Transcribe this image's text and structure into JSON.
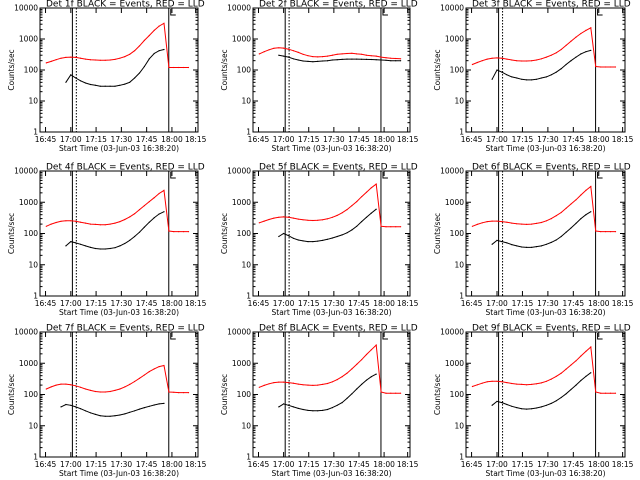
{
  "figure": {
    "colors": {
      "events": "#000000",
      "lld": "#ff0000",
      "axes": "#000000",
      "background": "#ffffff"
    }
  },
  "chart_data": [
    {
      "type": "line",
      "detector": "1f",
      "title": "Det 1f BLACK = Events, RED = LLD",
      "xlabel": "Start Time (03-Jun-03 16:38:20)",
      "ylabel": "Counts/sec",
      "x_tick_labels": [
        "16:45",
        "17:00",
        "17:15",
        "17:30",
        "17:45",
        "18:00",
        "18:15"
      ],
      "y_tick_labels": [
        "1",
        "10",
        "100",
        "1000",
        "10000"
      ],
      "ylim": [
        1,
        10000
      ],
      "y_scale": "log",
      "series": [
        {
          "name": "Events",
          "color": "#000000",
          "values": [
            null,
            null,
            null,
            null,
            40,
            70,
            55,
            45,
            38,
            34,
            32,
            30,
            30,
            30,
            30,
            32,
            35,
            40,
            55,
            80,
            130,
            230,
            340,
            420,
            460,
            null,
            null,
            null,
            null,
            null
          ]
        },
        {
          "name": "LLD",
          "color": "#ff0000",
          "values": [
            170,
            190,
            215,
            240,
            255,
            260,
            255,
            240,
            225,
            215,
            210,
            205,
            205,
            210,
            220,
            240,
            270,
            320,
            420,
            600,
            900,
            1300,
            1900,
            2600,
            3200,
            120,
            120,
            120,
            120,
            120
          ]
        }
      ]
    },
    {
      "type": "line",
      "detector": "2f",
      "title": "Det 2f BLACK = Events, RED = LLD",
      "xlabel": "Start Time (03-Jun-03 16:38:20)",
      "ylabel": "Counts/sec",
      "x_tick_labels": [
        "16:45",
        "17:00",
        "17:15",
        "17:30",
        "17:45",
        "18:00",
        "18:15"
      ],
      "y_tick_labels": [
        "1",
        "10",
        "100",
        "1000",
        "10000"
      ],
      "ylim": [
        1,
        10000
      ],
      "y_scale": "log",
      "series": [
        {
          "name": "Events",
          "color": "#000000",
          "values": [
            null,
            null,
            null,
            null,
            300,
            280,
            260,
            230,
            210,
            195,
            190,
            185,
            190,
            195,
            200,
            210,
            215,
            220,
            225,
            225,
            225,
            222,
            220,
            218,
            215,
            210,
            205,
            200,
            200,
            200
          ]
        },
        {
          "name": "LLD",
          "color": "#ff0000",
          "values": [
            330,
            390,
            450,
            500,
            520,
            510,
            470,
            420,
            370,
            320,
            290,
            270,
            265,
            270,
            280,
            300,
            320,
            330,
            340,
            345,
            330,
            320,
            300,
            290,
            280,
            260,
            250,
            240,
            235,
            230
          ]
        }
      ]
    },
    {
      "type": "line",
      "detector": "3f",
      "title": "Det 3f BLACK = Events, RED = LLD",
      "xlabel": "Start Time (03-Jun-03 16:38:20)",
      "ylabel": "Counts/sec",
      "x_tick_labels": [
        "16:45",
        "17:00",
        "17:15",
        "17:30",
        "17:45",
        "18:00",
        "18:15"
      ],
      "y_tick_labels": [
        "1",
        "10",
        "100",
        "1000",
        "10000"
      ],
      "ylim": [
        1,
        10000
      ],
      "y_scale": "log",
      "series": [
        {
          "name": "Events",
          "color": "#000000",
          "values": [
            null,
            null,
            null,
            null,
            50,
            100,
            85,
            70,
            60,
            55,
            50,
            48,
            48,
            50,
            55,
            60,
            70,
            85,
            110,
            150,
            200,
            260,
            330,
            390,
            430,
            null,
            null,
            null,
            null,
            null
          ]
        },
        {
          "name": "LLD",
          "color": "#ff0000",
          "values": [
            150,
            175,
            200,
            225,
            240,
            245,
            240,
            225,
            210,
            200,
            195,
            195,
            200,
            210,
            230,
            260,
            300,
            360,
            460,
            620,
            850,
            1150,
            1500,
            1900,
            2300,
            130,
            125,
            125,
            125,
            125
          ]
        }
      ]
    },
    {
      "type": "line",
      "detector": "4f",
      "title": "Det 4f BLACK = Events, RED = LLD",
      "xlabel": "Start Time (03-Jun-03 16:38:20)",
      "ylabel": "Counts/sec",
      "x_tick_labels": [
        "16:45",
        "17:00",
        "17:15",
        "17:30",
        "17:45",
        "18:00",
        "18:15"
      ],
      "y_tick_labels": [
        "1",
        "10",
        "100",
        "1000",
        "10000"
      ],
      "ylim": [
        1,
        10000
      ],
      "y_scale": "log",
      "series": [
        {
          "name": "Events",
          "color": "#000000",
          "values": [
            null,
            null,
            null,
            null,
            40,
            55,
            50,
            45,
            40,
            36,
            33,
            32,
            32,
            33,
            35,
            40,
            48,
            60,
            80,
            110,
            160,
            230,
            320,
            420,
            500,
            null,
            null,
            null,
            null,
            null
          ]
        },
        {
          "name": "LLD",
          "color": "#ff0000",
          "values": [
            170,
            200,
            225,
            245,
            255,
            255,
            245,
            230,
            215,
            200,
            195,
            190,
            190,
            200,
            215,
            240,
            280,
            340,
            430,
            580,
            780,
            1050,
            1400,
            1900,
            2400,
            120,
            115,
            115,
            115,
            115
          ]
        }
      ]
    },
    {
      "type": "line",
      "detector": "5f",
      "title": "Det 5f BLACK = Events, RED = LLD",
      "xlabel": "Start Time (03-Jun-03 16:38:20)",
      "ylabel": "Counts/sec",
      "x_tick_labels": [
        "16:45",
        "17:00",
        "17:15",
        "17:30",
        "17:45",
        "18:00",
        "18:15"
      ],
      "y_tick_labels": [
        "1",
        "10",
        "100",
        "1000",
        "10000"
      ],
      "ylim": [
        1,
        10000
      ],
      "y_scale": "log",
      "series": [
        {
          "name": "Events",
          "color": "#000000",
          "values": [
            null,
            null,
            null,
            null,
            80,
            100,
            85,
            70,
            62,
            58,
            55,
            55,
            57,
            60,
            65,
            72,
            80,
            90,
            105,
            130,
            170,
            240,
            330,
            450,
            600,
            null,
            null,
            null,
            null,
            null
          ]
        },
        {
          "name": "LLD",
          "color": "#ff0000",
          "values": [
            220,
            250,
            280,
            310,
            330,
            340,
            330,
            310,
            290,
            275,
            265,
            260,
            265,
            275,
            295,
            330,
            380,
            460,
            580,
            780,
            1050,
            1500,
            2100,
            2900,
            3800,
            170,
            165,
            165,
            165,
            165
          ]
        }
      ]
    },
    {
      "type": "line",
      "detector": "6f",
      "title": "Det 6f BLACK = Events, RED = LLD",
      "xlabel": "Start Time (03-Jun-03 16:38:20)",
      "ylabel": "Counts/sec",
      "x_tick_labels": [
        "16:45",
        "17:00",
        "17:15",
        "17:30",
        "17:45",
        "18:00",
        "18:15"
      ],
      "y_tick_labels": [
        "1",
        "10",
        "100",
        "1000",
        "10000"
      ],
      "ylim": [
        1,
        10000
      ],
      "y_scale": "log",
      "series": [
        {
          "name": "Events",
          "color": "#000000",
          "values": [
            null,
            null,
            null,
            null,
            45,
            60,
            55,
            50,
            44,
            40,
            37,
            36,
            36,
            38,
            40,
            45,
            52,
            62,
            80,
            110,
            150,
            210,
            300,
            400,
            500,
            null,
            null,
            null,
            null,
            null
          ]
        },
        {
          "name": "LLD",
          "color": "#ff0000",
          "values": [
            170,
            195,
            220,
            240,
            250,
            250,
            240,
            230,
            215,
            205,
            200,
            195,
            200,
            210,
            225,
            255,
            300,
            370,
            470,
            640,
            880,
            1200,
            1700,
            2400,
            3200,
            120,
            115,
            115,
            115,
            115
          ]
        }
      ]
    },
    {
      "type": "line",
      "detector": "7f",
      "title": "Det 7f BLACK = Events, RED = LLD",
      "xlabel": "Start Time (03-Jun-03 16:38:20)",
      "ylabel": "Counts/sec",
      "x_tick_labels": [
        "16:45",
        "17:00",
        "17:15",
        "17:30",
        "17:45",
        "18:00",
        "18:15"
      ],
      "y_tick_labels": [
        "1",
        "10",
        "100",
        "1000",
        "10000"
      ],
      "ylim": [
        1,
        10000
      ],
      "y_scale": "log",
      "series": [
        {
          "name": "Events",
          "color": "#000000",
          "values": [
            null,
            null,
            null,
            40,
            48,
            45,
            40,
            35,
            30,
            26,
            23,
            21,
            20,
            20,
            21,
            22,
            24,
            27,
            30,
            34,
            38,
            42,
            46,
            50,
            52,
            null,
            null,
            null,
            null,
            null
          ]
        },
        {
          "name": "LLD",
          "color": "#ff0000",
          "values": [
            150,
            175,
            200,
            215,
            215,
            205,
            190,
            170,
            150,
            135,
            125,
            120,
            120,
            125,
            135,
            150,
            175,
            210,
            260,
            330,
            420,
            540,
            660,
            780,
            850,
            120,
            118,
            115,
            115,
            115
          ]
        }
      ]
    },
    {
      "type": "line",
      "detector": "8f",
      "title": "Det 8f BLACK = Events, RED = LLD",
      "xlabel": "Start Time (03-Jun-03 16:38:20)",
      "ylabel": "Counts/sec",
      "x_tick_labels": [
        "16:45",
        "17:00",
        "17:15",
        "17:30",
        "17:45",
        "18:00",
        "18:15"
      ],
      "y_tick_labels": [
        "1",
        "10",
        "100",
        "1000",
        "10000"
      ],
      "ylim": [
        1,
        10000
      ],
      "y_scale": "log",
      "series": [
        {
          "name": "Events",
          "color": "#000000",
          "values": [
            null,
            null,
            null,
            null,
            40,
            50,
            45,
            40,
            36,
            33,
            31,
            30,
            30,
            31,
            33,
            38,
            45,
            55,
            75,
            105,
            150,
            210,
            290,
            370,
            450,
            null,
            null,
            null,
            null,
            null
          ]
        },
        {
          "name": "LLD",
          "color": "#ff0000",
          "values": [
            170,
            195,
            220,
            240,
            250,
            250,
            240,
            230,
            215,
            205,
            200,
            195,
            200,
            210,
            225,
            255,
            300,
            370,
            480,
            660,
            920,
            1300,
            1900,
            2700,
            3800,
            120,
            110,
            110,
            110,
            110
          ]
        }
      ]
    },
    {
      "type": "line",
      "detector": "9f",
      "title": "Det 9f BLACK = Events, RED = LLD",
      "xlabel": "Start Time (03-Jun-03 16:38:20)",
      "ylabel": "Counts/sec",
      "x_tick_labels": [
        "16:45",
        "17:00",
        "17:15",
        "17:30",
        "17:45",
        "18:00",
        "18:15"
      ],
      "y_tick_labels": [
        "1",
        "10",
        "100",
        "1000",
        "10000"
      ],
      "ylim": [
        1,
        10000
      ],
      "y_scale": "log",
      "series": [
        {
          "name": "Events",
          "color": "#000000",
          "values": [
            null,
            null,
            null,
            null,
            45,
            60,
            55,
            48,
            42,
            38,
            35,
            34,
            35,
            37,
            40,
            45,
            52,
            63,
            80,
            105,
            145,
            200,
            280,
            380,
            500,
            null,
            null,
            null,
            null,
            null
          ]
        },
        {
          "name": "LLD",
          "color": "#ff0000",
          "values": [
            180,
            205,
            230,
            255,
            265,
            265,
            255,
            240,
            225,
            215,
            210,
            205,
            210,
            220,
            235,
            265,
            310,
            380,
            480,
            650,
            880,
            1200,
            1700,
            2400,
            3300,
            120,
            110,
            110,
            110,
            110
          ]
        }
      ]
    }
  ]
}
